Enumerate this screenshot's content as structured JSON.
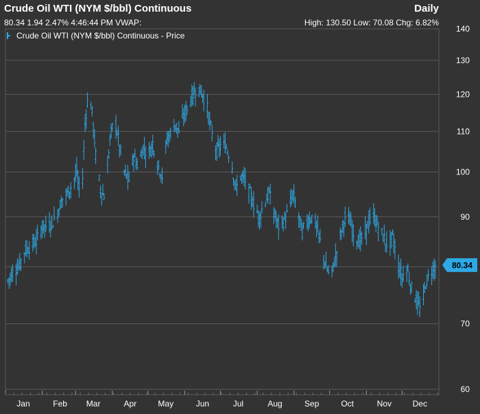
{
  "header": {
    "title": "Crude Oil WTI (NYM $/bbl) Continuous",
    "period": "Daily",
    "quote": "80.34 1.94 2.47% 4:46:44 PM VWAP:",
    "stats": "High: 130.50 Low: 70.08 Chg: 6.82%"
  },
  "legend": {
    "label": "Crude Oil WTI (NYM $/bbl) Continuous - Price"
  },
  "colors": {
    "background": "#333333",
    "grid": "#5a5a5a",
    "series": "#2ea9e6",
    "last_badge": "#2ea9e6"
  },
  "chart_data": {
    "type": "line",
    "style": "ohlc-bars",
    "title": "Crude Oil WTI (NYM $/bbl) Continuous",
    "xlabel": "",
    "ylabel": "",
    "y_scale": "log",
    "ylim": [
      60,
      140
    ],
    "y_ticks": [
      60,
      70,
      80,
      90,
      100,
      110,
      120,
      130,
      140
    ],
    "y_tick_labels": [
      "60",
      "70",
      "",
      "90",
      "100",
      "110",
      "120",
      "130",
      "140"
    ],
    "x_ticks": [
      "Jan",
      "Feb",
      "Mar",
      "Apr",
      "May",
      "Jun",
      "Jul",
      "Aug",
      "Sep",
      "Oct",
      "Nov",
      "Dec"
    ],
    "grid": true,
    "last_value": 80.34,
    "high": 130.5,
    "low": 70.08,
    "series": [
      {
        "name": "Crude Oil WTI (NYM $/bbl) Continuous - Price",
        "x": [
          1,
          6,
          11,
          16,
          21,
          26,
          31,
          36,
          40,
          44,
          48,
          52,
          56,
          60,
          64,
          67,
          70,
          73,
          76,
          80,
          84,
          88,
          92,
          96,
          100,
          104,
          108,
          112,
          116,
          120,
          124,
          128,
          132,
          136,
          140,
          143,
          146,
          150,
          154,
          158,
          162,
          166,
          170,
          174,
          178,
          182,
          186,
          190,
          194,
          198,
          202,
          206,
          210,
          214,
          218,
          222,
          226,
          230,
          234,
          238,
          242,
          246,
          250,
          254,
          258,
          262,
          266,
          270,
          274,
          278,
          282,
          286,
          290,
          294,
          298,
          302,
          306,
          310,
          314,
          318,
          322,
          326,
          330,
          334,
          338,
          342,
          346,
          350,
          354,
          358,
          362
        ],
        "y": [
          77,
          79,
          80,
          83,
          84,
          85,
          88,
          88,
          89,
          91,
          94,
          95,
          97,
          100,
          92,
          112,
          121,
          115,
          104,
          96,
          94,
          108,
          114,
          106,
          100,
          98,
          104,
          101,
          106,
          104,
          107,
          102,
          99,
          108,
          110,
          112,
          110,
          114,
          117,
          120,
          122,
          120,
          116,
          109,
          105,
          107,
          106,
          103,
          96,
          99,
          98,
          95,
          92,
          90,
          93,
          95,
          91,
          88,
          89,
          91,
          95,
          91,
          87,
          89,
          90,
          88,
          84,
          80,
          78,
          82,
          86,
          90,
          89,
          86,
          85,
          86,
          89,
          90,
          88,
          86,
          84,
          86,
          81,
          78,
          80,
          76,
          74,
          72,
          77,
          79,
          80.34
        ]
      }
    ]
  }
}
